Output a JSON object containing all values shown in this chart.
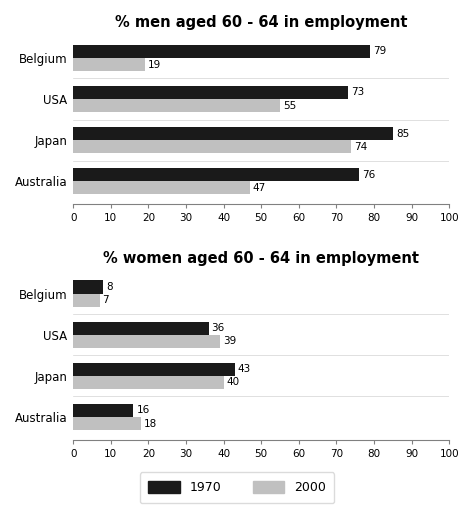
{
  "men_title": "% men aged 60 - 64 in employment",
  "women_title": "% women aged 60 - 64 in employment",
  "countries": [
    "Australia",
    "Japan",
    "USA",
    "Belgium"
  ],
  "men_1970": [
    76,
    85,
    73,
    79
  ],
  "men_2000": [
    47,
    74,
    55,
    19
  ],
  "women_1970": [
    16,
    43,
    36,
    8
  ],
  "women_2000": [
    18,
    40,
    39,
    7
  ],
  "color_1970": "#1a1a1a",
  "color_2000": "#c0c0c0",
  "xlim": [
    0,
    100
  ],
  "xticks": [
    0,
    10,
    20,
    30,
    40,
    50,
    60,
    70,
    80,
    90,
    100
  ],
  "bar_height": 0.32,
  "label_1970": "1970",
  "label_2000": "2000",
  "bg_color": "#ffffff",
  "title_fontsize": 10.5,
  "label_fontsize": 8.5,
  "tick_fontsize": 7.5,
  "value_fontsize": 7.5
}
